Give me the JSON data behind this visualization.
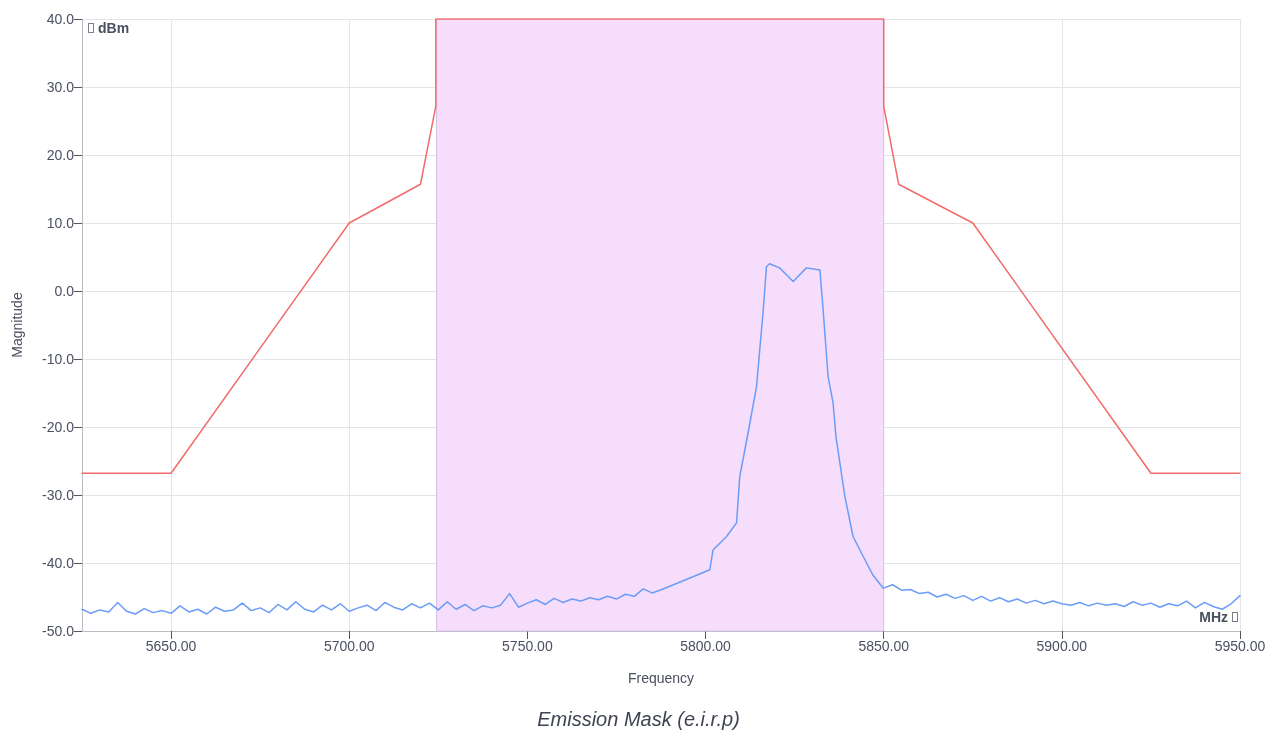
{
  "chart_data": {
    "type": "line",
    "title": "Emission Mask (e.i.r.p)",
    "xlabel": "Frequency",
    "ylabel": "Magnitude",
    "annotations": [
      "dBm",
      "MHz"
    ],
    "xlim": [
      5625,
      5950
    ],
    "xticks": [
      {
        "value": 5650,
        "label": "5650.00"
      },
      {
        "value": 5700,
        "label": "5700.00"
      },
      {
        "value": 5750,
        "label": "5750.00"
      },
      {
        "value": 5800,
        "label": "5800.00"
      },
      {
        "value": 5850,
        "label": "5850.00"
      },
      {
        "value": 5900,
        "label": "5900.00"
      },
      {
        "value": 5950,
        "label": "5950.00"
      }
    ],
    "ylim": [
      -50,
      40
    ],
    "yticks": [
      {
        "value": -50,
        "label": "-50.0"
      },
      {
        "value": -40,
        "label": "-40.0"
      },
      {
        "value": -30,
        "label": "-30.0"
      },
      {
        "value": -20,
        "label": "-20.0"
      },
      {
        "value": -10,
        "label": "-10.0"
      },
      {
        "value": 0,
        "label": "0.0"
      },
      {
        "value": 10,
        "label": "10.0"
      },
      {
        "value": 20,
        "label": "20.0"
      },
      {
        "value": 30,
        "label": "30.0"
      },
      {
        "value": 40,
        "label": "40.0"
      }
    ],
    "grid": true,
    "marker": "none",
    "line_style": "solid",
    "bands": [
      {
        "axis": "x",
        "from": 5724.5,
        "to": 5850,
        "color": "#f5ddfb"
      }
    ],
    "series": [
      {
        "color": "#f26b6b",
        "x": [
          5625,
          5650,
          5700,
          5720,
          5724.3,
          5724.3,
          5850,
          5850,
          5854.2,
          5875,
          5925,
          5950
        ],
        "values": [
          -26.8,
          -26.8,
          10,
          15.7,
          27.2,
          40,
          40,
          27.2,
          15.7,
          10,
          -26.8,
          -26.8
        ]
      },
      {
        "color": "#6b9cf8",
        "x": [
          5625,
          5627.5,
          5630,
          5632.5,
          5635,
          5637.5,
          5640,
          5642.5,
          5645,
          5647.5,
          5650,
          5652.5,
          5655,
          5657.5,
          5660,
          5662.5,
          5665,
          5667.5,
          5670,
          5672.5,
          5675,
          5677.5,
          5680,
          5682.5,
          5685,
          5687.5,
          5690,
          5692.5,
          5695,
          5697.5,
          5700,
          5702.5,
          5705,
          5707.5,
          5710,
          5712.5,
          5715,
          5717.5,
          5720,
          5722.5,
          5725,
          5727.5,
          5730,
          5732.5,
          5735,
          5737.5,
          5740,
          5742.5,
          5745,
          5747.5,
          5750,
          5752.5,
          5755,
          5757.5,
          5760,
          5762.5,
          5765,
          5767.5,
          5770,
          5772.5,
          5775,
          5777.5,
          5780,
          5782.5,
          5785,
          5787.2,
          5797.5,
          5801.2,
          5802.1,
          5805.9,
          5808.7,
          5809.6,
          5812.0,
          5814.3,
          5815.2,
          5816.2,
          5817.1,
          5818.0,
          5820.8,
          5824.6,
          5828.3,
          5832.1,
          5833.0,
          5834.4,
          5835.8,
          5836.6,
          5839.1,
          5841.4,
          5845.2,
          5847.0,
          5849.9,
          5852.5,
          5855,
          5857.5,
          5860,
          5862.5,
          5865,
          5867.5,
          5870,
          5872.5,
          5875,
          5877.5,
          5880,
          5882.5,
          5885,
          5887.5,
          5890,
          5892.5,
          5895,
          5897.5,
          5900,
          5902.5,
          5905,
          5907.5,
          5910,
          5912.5,
          5915,
          5917.5,
          5920,
          5922.5,
          5925,
          5927.5,
          5930,
          5932.5,
          5935,
          5937.5,
          5940,
          5942.5,
          5945,
          5947.5,
          5950
        ],
        "values": [
          -46.8,
          -47.4,
          -46.9,
          -47.2,
          -45.8,
          -47.1,
          -47.5,
          -46.7,
          -47.3,
          -47.0,
          -47.4,
          -46.3,
          -47.2,
          -46.8,
          -47.5,
          -46.5,
          -47.1,
          -46.9,
          -45.9,
          -47.0,
          -46.6,
          -47.3,
          -46.1,
          -46.9,
          -45.7,
          -46.8,
          -47.2,
          -46.2,
          -46.9,
          -46.0,
          -47.1,
          -46.6,
          -46.2,
          -47.0,
          -45.8,
          -46.5,
          -46.9,
          -46.0,
          -46.6,
          -45.9,
          -46.9,
          -45.7,
          -46.8,
          -46.1,
          -47.0,
          -46.3,
          -46.6,
          -46.2,
          -44.5,
          -46.5,
          -45.9,
          -45.4,
          -46.1,
          -45.2,
          -45.8,
          -45.3,
          -45.6,
          -45.1,
          -45.4,
          -44.9,
          -45.3,
          -44.6,
          -44.9,
          -43.8,
          -44.4,
          -44.0,
          -41.8,
          -41.0,
          -38.1,
          -36.1,
          -34.1,
          -27.3,
          -20.7,
          -14.1,
          -8.7,
          -2.8,
          3.6,
          4.0,
          3.4,
          1.4,
          3.4,
          3.1,
          -2.8,
          -12.6,
          -16.5,
          -21.4,
          -30.2,
          -36.1,
          -40.0,
          -41.8,
          -43.7,
          -43.2,
          -44.0,
          -43.9,
          -44.5,
          -44.3,
          -45.0,
          -44.6,
          -45.2,
          -44.8,
          -45.5,
          -44.9,
          -45.6,
          -45.1,
          -45.7,
          -45.3,
          -45.9,
          -45.5,
          -46.0,
          -45.6,
          -46.0,
          -46.2,
          -45.8,
          -46.3,
          -45.9,
          -46.2,
          -46.0,
          -46.4,
          -45.7,
          -46.2,
          -45.9,
          -46.5,
          -46.0,
          -46.3,
          -45.6,
          -46.6,
          -45.8,
          -46.4,
          -46.8,
          -46.0,
          -44.8
        ]
      }
    ]
  }
}
